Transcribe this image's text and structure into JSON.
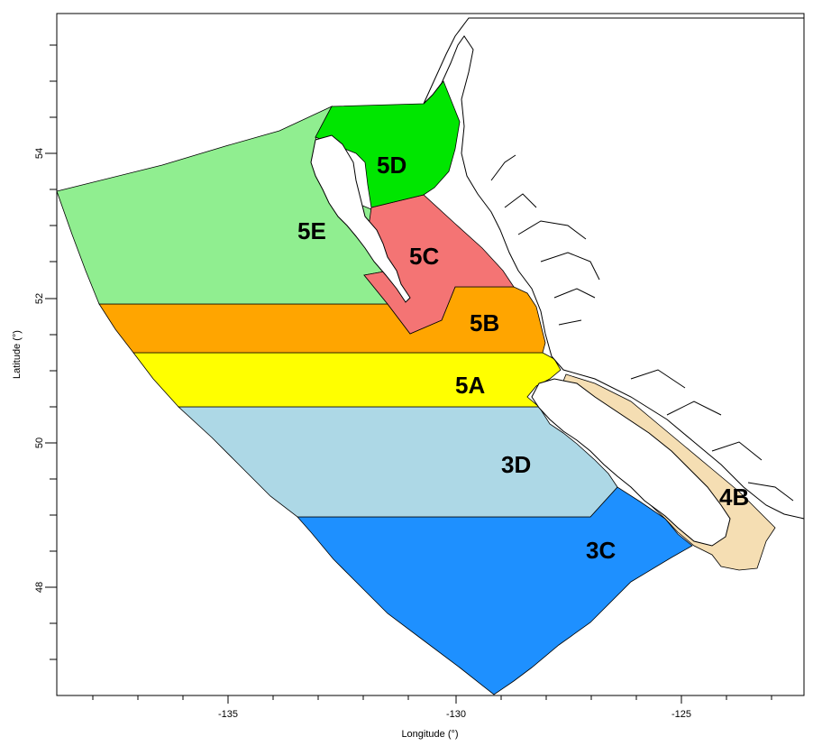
{
  "x_axis": {
    "label": "Longitude (°)",
    "ticks": [
      "-135",
      "-130",
      "-125"
    ]
  },
  "y_axis": {
    "label": "Latitude (°)",
    "ticks": [
      "54",
      "52",
      "50",
      "48"
    ]
  },
  "areas": [
    {
      "id": "5D",
      "label": "5D",
      "color": "#00e600"
    },
    {
      "id": "5E",
      "label": "5E",
      "color": "#90ee90"
    },
    {
      "id": "5C",
      "label": "5C",
      "color": "#f47474"
    },
    {
      "id": "5B",
      "label": "5B",
      "color": "#ffa500"
    },
    {
      "id": "5A",
      "label": "5A",
      "color": "#ffff00"
    },
    {
      "id": "3D",
      "label": "3D",
      "color": "#add8e6"
    },
    {
      "id": "3C",
      "label": "3C",
      "color": "#1e90ff"
    },
    {
      "id": "4B",
      "label": "4B",
      "color": "#f5deb3"
    }
  ]
}
